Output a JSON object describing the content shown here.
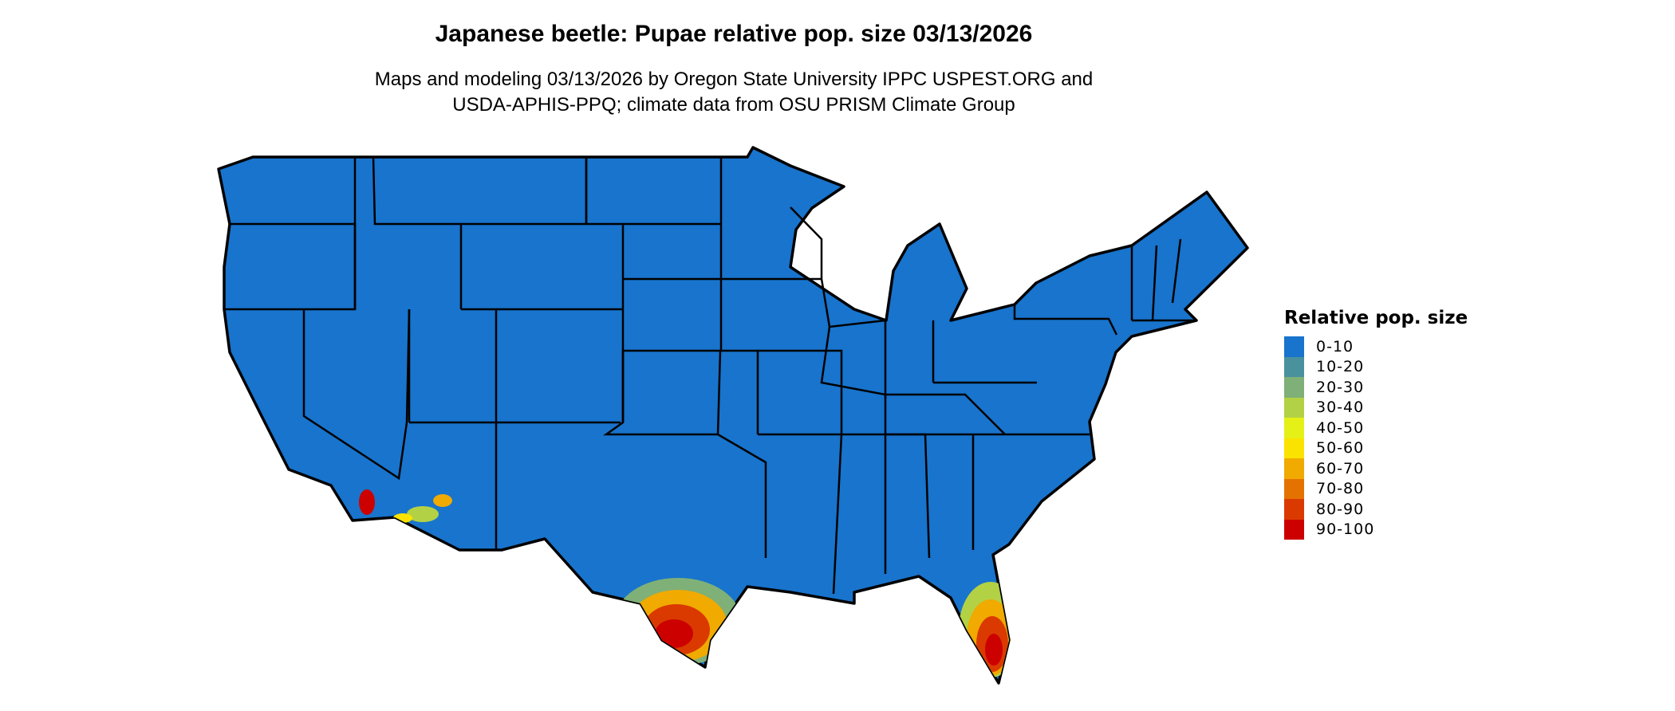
{
  "title": "Japanese beetle: Pupae relative pop. size 03/13/2026",
  "subtitle_line1": "Maps and modeling 03/13/2026 by Oregon State University IPPC USPEST.ORG and",
  "subtitle_line2": "USDA-APHIS-PPQ; climate data from OSU PRISM Climate Group",
  "legend": {
    "title": "Relative pop. size",
    "items": [
      {
        "label": "0-10",
        "color": "#1874CD"
      },
      {
        "label": "10-20",
        "color": "#4A919E"
      },
      {
        "label": "20-30",
        "color": "#7FB077"
      },
      {
        "label": "30-40",
        "color": "#B3D145"
      },
      {
        "label": "40-50",
        "color": "#E5F016"
      },
      {
        "label": "50-60",
        "color": "#FAE300"
      },
      {
        "label": "60-70",
        "color": "#F0AA00"
      },
      {
        "label": "70-80",
        "color": "#E47200"
      },
      {
        "label": "80-90",
        "color": "#DA3A00"
      },
      {
        "label": "90-100",
        "color": "#CD0000"
      }
    ]
  },
  "map": {
    "region": "Contiguous United States",
    "base_color": "#1874CD",
    "border_color": "#000000"
  }
}
